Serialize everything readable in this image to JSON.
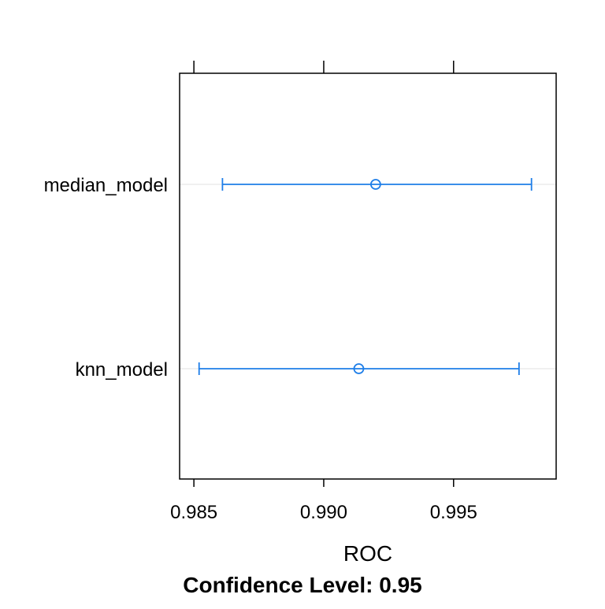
{
  "chart_data": {
    "type": "dotplot",
    "xlabel": "ROC",
    "caption": "Confidence Level: 0.95",
    "xlim": [
      0.98445,
      0.99895
    ],
    "x_ticks": [
      0.985,
      0.99,
      0.995
    ],
    "x_tick_labels": [
      "0.985",
      "0.990",
      "0.995"
    ],
    "categories": [
      "median_model",
      "knn_model"
    ],
    "series": [
      {
        "values": [
          {
            "category": "median_model",
            "estimate": 0.992,
            "lower": 0.9861,
            "upper": 0.998
          },
          {
            "category": "knn_model",
            "estimate": 0.99135,
            "lower": 0.9852,
            "upper": 0.99752
          }
        ]
      }
    ],
    "colors": {
      "interval": "#1e7ee8",
      "grid": "#e6e6e6",
      "frame": "#000000"
    },
    "grid": "horizontal reference lines",
    "legend": "none"
  }
}
